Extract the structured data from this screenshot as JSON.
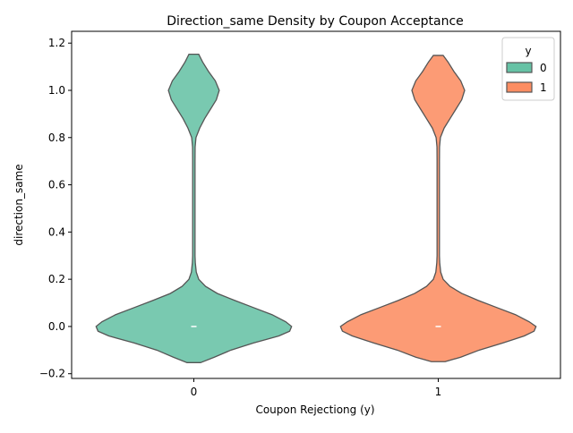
{
  "chart_data": {
    "type": "violin",
    "title": "Direction_same Density by Coupon Acceptance",
    "xlabel": "Coupon Rejectiong (y)",
    "ylabel": "direction_same",
    "categories": [
      "0",
      "1"
    ],
    "ylim": [
      -0.22,
      1.25
    ],
    "yticks": [
      -0.2,
      0.0,
      0.2,
      0.4,
      0.6,
      0.8,
      1.0,
      1.2
    ],
    "ytick_labels": [
      "−0.2",
      "0.0",
      "0.2",
      "0.4",
      "0.6",
      "0.8",
      "1.0",
      "1.2"
    ],
    "grid": false,
    "legend": {
      "title": "y",
      "placement": "top-right",
      "entries": [
        {
          "label": "0",
          "color": "#66c2a5"
        },
        {
          "label": "1",
          "color": "#fc8d62"
        }
      ]
    },
    "series": [
      {
        "name": "0",
        "color": "#66c2a5",
        "median": 0.0,
        "density_y": [
          -0.153,
          -0.13,
          -0.1,
          -0.07,
          -0.04,
          -0.02,
          0.0,
          0.02,
          0.05,
          0.08,
          0.11,
          0.14,
          0.17,
          0.2,
          0.23,
          0.27,
          0.3,
          0.4,
          0.5,
          0.6,
          0.7,
          0.76,
          0.8,
          0.84,
          0.88,
          0.92,
          0.96,
          1.0,
          1.04,
          1.08,
          1.12,
          1.153
        ],
        "density_halfwidth": [
          0.07,
          0.21,
          0.38,
          0.61,
          0.87,
          0.98,
          1.0,
          0.94,
          0.8,
          0.61,
          0.42,
          0.24,
          0.12,
          0.05,
          0.025,
          0.015,
          0.012,
          0.012,
          0.012,
          0.012,
          0.012,
          0.013,
          0.022,
          0.06,
          0.11,
          0.17,
          0.23,
          0.26,
          0.22,
          0.15,
          0.09,
          0.05
        ]
      },
      {
        "name": "1",
        "color": "#fc8d62",
        "median": 0.0,
        "density_y": [
          -0.149,
          -0.13,
          -0.1,
          -0.07,
          -0.04,
          -0.02,
          0.0,
          0.02,
          0.05,
          0.08,
          0.11,
          0.14,
          0.17,
          0.2,
          0.23,
          0.27,
          0.3,
          0.4,
          0.5,
          0.6,
          0.7,
          0.76,
          0.8,
          0.84,
          0.88,
          0.92,
          0.96,
          1.0,
          1.04,
          1.08,
          1.12,
          1.148
        ],
        "density_halfwidth": [
          0.07,
          0.23,
          0.42,
          0.66,
          0.88,
          0.98,
          1.0,
          0.93,
          0.79,
          0.6,
          0.41,
          0.24,
          0.12,
          0.05,
          0.025,
          0.015,
          0.012,
          0.012,
          0.012,
          0.012,
          0.012,
          0.013,
          0.022,
          0.06,
          0.12,
          0.18,
          0.24,
          0.27,
          0.23,
          0.16,
          0.1,
          0.05
        ]
      }
    ]
  }
}
